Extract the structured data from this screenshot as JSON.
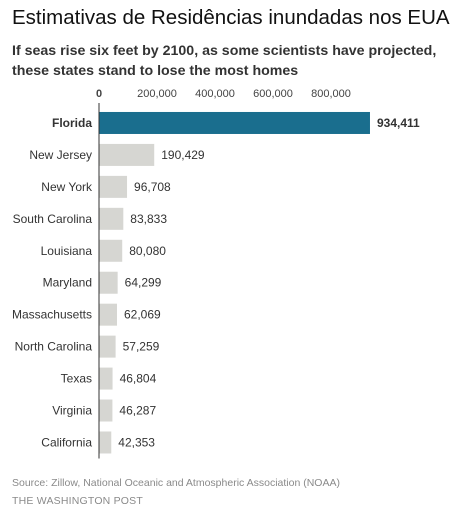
{
  "header": {
    "title": "Estimativas de Residências inundadas nos EUA",
    "subtitle": "If seas rise six feet by 2100, as some scientists have projected, these states stand to lose the most homes"
  },
  "chart_data": {
    "type": "bar",
    "orientation": "horizontal",
    "categories": [
      "Florida",
      "New Jersey",
      "New York",
      "South Carolina",
      "Louisiana",
      "Maryland",
      "Massachusetts",
      "North Carolina",
      "Texas",
      "Virginia",
      "California"
    ],
    "values": [
      934411,
      190429,
      96708,
      83833,
      80080,
      64299,
      62069,
      57259,
      46804,
      46287,
      42353
    ],
    "value_labels": [
      "934,411",
      "190,429",
      "96,708",
      "83,833",
      "80,080",
      "64,299",
      "62,069",
      "57,259",
      "46,804",
      "46,287",
      "42,353"
    ],
    "highlight": "Florida",
    "xlim": [
      0,
      800000
    ],
    "x_ticks": [
      0,
      200000,
      400000,
      600000,
      800000
    ],
    "x_tick_labels": [
      "0",
      "200,000",
      "400,000",
      "600,000",
      "800,000"
    ],
    "grid": false,
    "colors": {
      "highlight": "#1a6e8e",
      "bar": "#d6d6d2",
      "axis": "#333333"
    }
  },
  "footer": {
    "source": "Source: Zillow, National Oceanic and Atmospheric Association (NOAA)",
    "credit": "THE WASHINGTON POST"
  }
}
